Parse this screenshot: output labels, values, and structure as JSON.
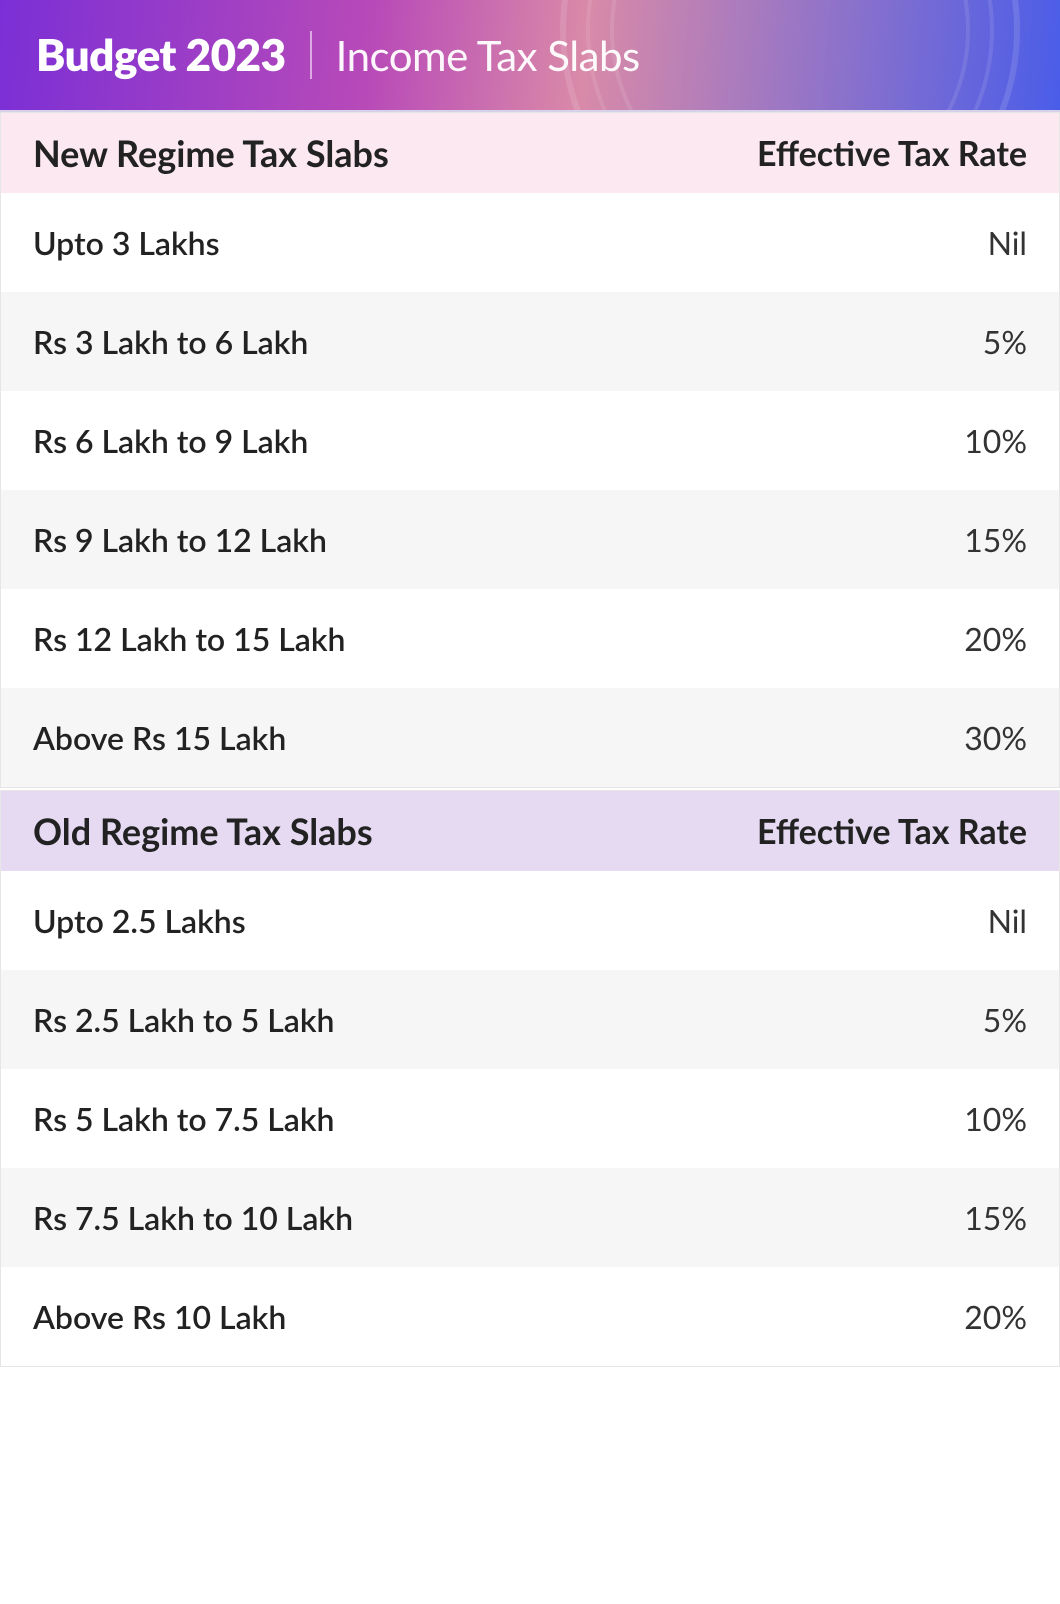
{
  "banner": {
    "title": "Budget 2023",
    "subtitle": "Income Tax Slabs",
    "gradient": {
      "from": "#7b2fd6",
      "mid1": "#b84ab8",
      "mid2": "#d98aa8",
      "to": "#4a5de8"
    },
    "title_color": "#ffffff",
    "subtitle_color": "#ffffff",
    "title_fontsize": 44,
    "subtitle_fontsize": 42
  },
  "columns": {
    "slab_header_suffix": "",
    "rate_header": "Effective Tax Rate"
  },
  "sections": [
    {
      "title": "New Regime Tax Slabs",
      "header_bg": "#fce8f0",
      "row_bg_even": "#ffffff",
      "row_bg_odd": "#f6f6f6",
      "rows": [
        {
          "slab": "Upto 3 Lakhs",
          "rate": "Nil"
        },
        {
          "slab": "Rs 3 Lakh to 6 Lakh",
          "rate": "5%"
        },
        {
          "slab": "Rs 6 Lakh to 9 Lakh",
          "rate": "10%"
        },
        {
          "slab": "Rs 9 Lakh to 12 Lakh",
          "rate": "15%"
        },
        {
          "slab": "Rs 12 Lakh to 15 Lakh",
          "rate": "20%"
        },
        {
          "slab": "Above Rs 15 Lakh",
          "rate": "30%"
        }
      ]
    },
    {
      "title": "Old Regime Tax Slabs",
      "header_bg": "#e6daf3",
      "row_bg_even": "#ffffff",
      "row_bg_odd": "#f6f6f6",
      "rows": [
        {
          "slab": "Upto 2.5 Lakhs",
          "rate": "Nil"
        },
        {
          "slab": "Rs 2.5 Lakh to 5 Lakh",
          "rate": "5%"
        },
        {
          "slab": "Rs 5 Lakh to 7.5 Lakh",
          "rate": "10%"
        },
        {
          "slab": "Rs 7.5 Lakh to 10 Lakh",
          "rate": "15%"
        },
        {
          "slab": "Above Rs 10 Lakh",
          "rate": "20%"
        }
      ]
    }
  ],
  "typography": {
    "section_title_fontsize": 36,
    "rate_header_fontsize": 34,
    "row_fontsize": 32,
    "text_color": "#222222"
  }
}
